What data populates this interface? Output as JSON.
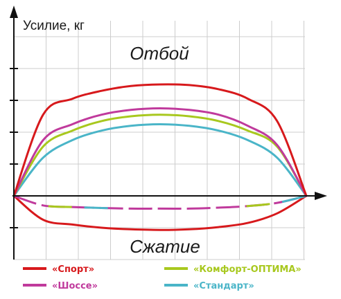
{
  "chart_data": {
    "type": "line",
    "ylabel": "Усилие, кг",
    "annotations": {
      "rebound": "Отбой",
      "compression": "Сжатие"
    },
    "grid": true,
    "legend_position": "bottom",
    "x": [
      0,
      0.1,
      0.2,
      0.3,
      0.4,
      0.5,
      0.6,
      0.7,
      0.8,
      0.9,
      1.0
    ],
    "ylim": [
      -1.7,
      5.6
    ],
    "series": [
      {
        "name": "«Спорт»",
        "color": "#d7191c",
        "style": "solid",
        "rebound": [
          0,
          2.55,
          3.05,
          3.3,
          3.45,
          3.5,
          3.48,
          3.35,
          3.05,
          2.35,
          0
        ],
        "compression": [
          0,
          -0.75,
          -0.9,
          -1.0,
          -1.05,
          -1.07,
          -1.05,
          -0.98,
          -0.85,
          -0.55,
          0
        ]
      },
      {
        "name": "«Комфорт-ОПТИМА»",
        "color": "#a8c81e",
        "style": "solid",
        "rebound": [
          0,
          1.55,
          2.05,
          2.35,
          2.5,
          2.55,
          2.5,
          2.35,
          2.05,
          1.55,
          0
        ]
      },
      {
        "name": "«Шоссе»",
        "color": "#c03a9c",
        "style": "dashed",
        "rebound": [
          0,
          1.75,
          2.25,
          2.55,
          2.7,
          2.75,
          2.7,
          2.55,
          2.2,
          1.6,
          0
        ],
        "compression": [
          0,
          -0.3,
          -0.35,
          -0.38,
          -0.4,
          -0.4,
          -0.4,
          -0.37,
          -0.32,
          -0.22,
          0
        ]
      },
      {
        "name": "«Стандарт»",
        "color": "#4ab5c8",
        "style": "dashed",
        "rebound": [
          0,
          1.2,
          1.75,
          2.05,
          2.2,
          2.25,
          2.2,
          2.05,
          1.75,
          1.2,
          0
        ]
      }
    ]
  }
}
